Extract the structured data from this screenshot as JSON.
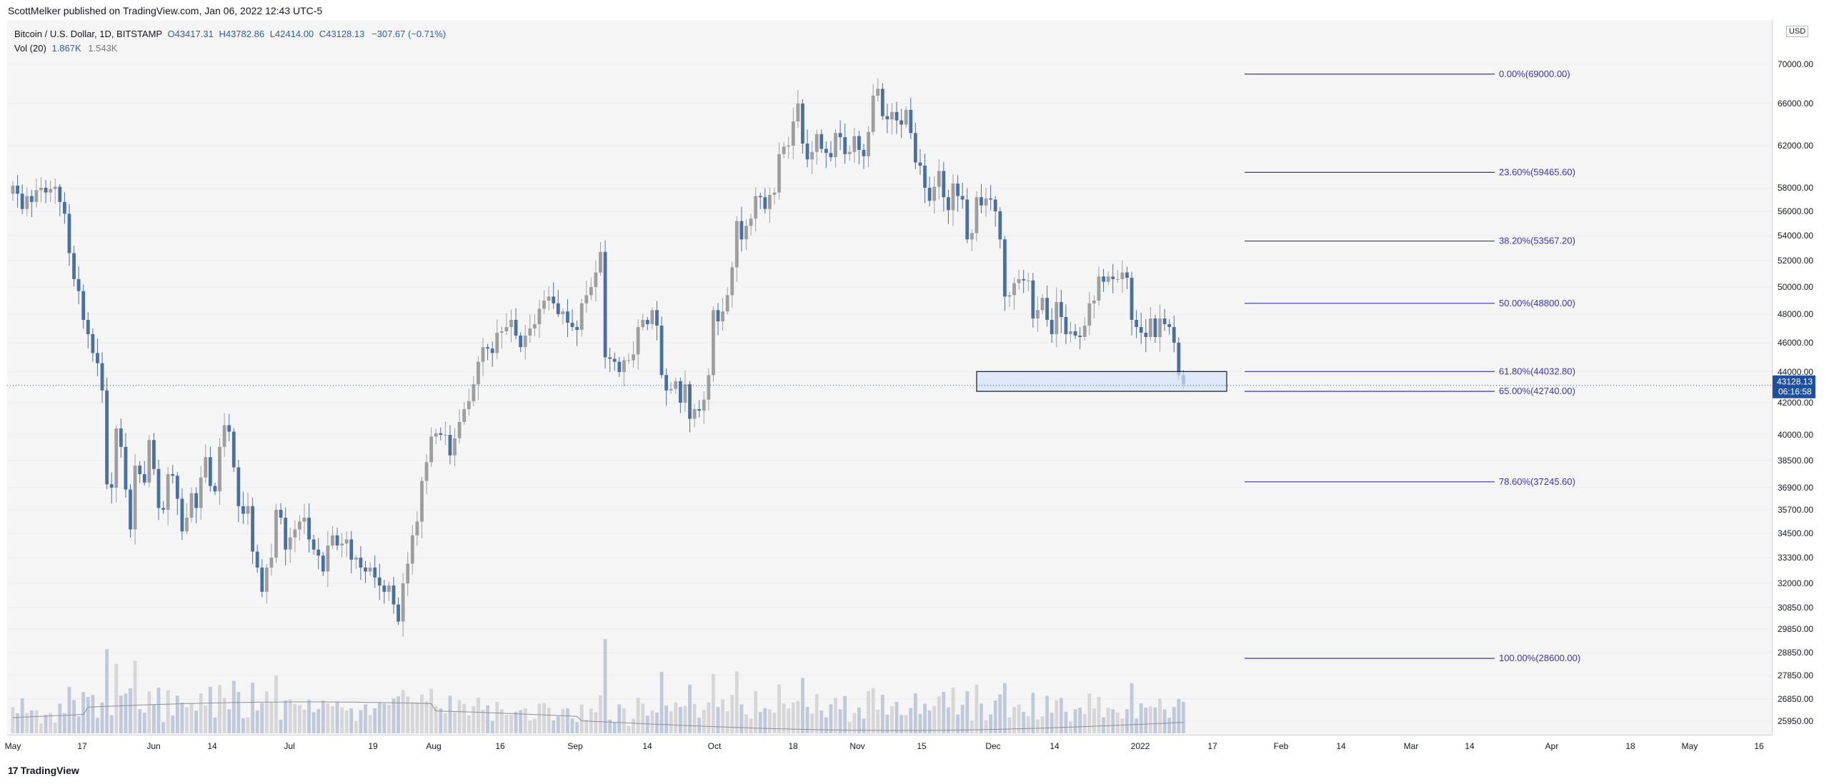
{
  "header": {
    "published": "ScottMelker published on TradingView.com, Jan 06, 2022 12:43 UTC-5"
  },
  "legend": {
    "symbol": "Bitcoin / U.S. Dollar, 1D, BITSTAMP",
    "open": "O43417.31",
    "high": "H43782.86",
    "low": "L42414.00",
    "close": "C43128.13",
    "change": "−307.67 (−0.71%)",
    "vol_label": "Vol (20)",
    "vol_value": "1.867K",
    "vol_ma": "1.543K"
  },
  "currency": "USD",
  "footer": {
    "brand": "TradingView",
    "logo_glyph": "17"
  },
  "colors": {
    "up": "#9e9e9e",
    "down": "#4a6fa5",
    "fib": "#3a34b5",
    "zone_fill": "#d6e2f7",
    "badge": "#1e4f9c"
  },
  "chart_data": {
    "type": "candlestick",
    "title": "Bitcoin / U.S. Dollar, 1D, BITSTAMP",
    "ylim": [
      25950,
      71000
    ],
    "y_ticks": [
      "70000.00",
      "66000.00",
      "62000.00",
      "58000.00",
      "56000.00",
      "54000.00",
      "52000.00",
      "50000.00",
      "48000.00",
      "46000.00",
      "44000.00",
      "42000.00",
      "40000.00",
      "38500.00",
      "36900.00",
      "35700.00",
      "34500.00",
      "33300.00",
      "32000.00",
      "30850.00",
      "29850.00",
      "28850.00",
      "27850.00",
      "26850.00",
      "25950.00"
    ],
    "x_ticks": [
      "May",
      "17",
      "Jun",
      "14",
      "Jul",
      "19",
      "Aug",
      "16",
      "Sep",
      "14",
      "Oct",
      "18",
      "Nov",
      "15",
      "Dec",
      "14",
      "2022",
      "17",
      "Feb",
      "14",
      "Mar",
      "14",
      "Apr",
      "18",
      "May",
      "16"
    ],
    "last_price": {
      "value": "43128.13",
      "countdown": "06:16:58"
    },
    "closes": [
      58200,
      57500,
      56200,
      57300,
      56800,
      57800,
      58000,
      57600,
      57900,
      58100,
      56800,
      55800,
      52600,
      50600,
      49700,
      47600,
      46600,
      45300,
      44600,
      42800,
      37100,
      36900,
      40400,
      39300,
      36800,
      34700,
      38200,
      37700,
      37200,
      39700,
      38000,
      35800,
      35700,
      37700,
      37600,
      36300,
      34600,
      35300,
      36600,
      35800,
      37500,
      38700,
      37000,
      36700,
      39300,
      40600,
      40200,
      38100,
      35900,
      35500,
      35900,
      33600,
      32800,
      31600,
      32800,
      33300,
      35700,
      35300,
      33700,
      34300,
      34700,
      35100,
      35300,
      34200,
      33700,
      33400,
      32600,
      33900,
      34400,
      33900,
      34000,
      34200,
      33200,
      33300,
      32800,
      32600,
      32800,
      32300,
      31900,
      31600,
      31900,
      31000,
      30200,
      32000,
      33000,
      34400,
      35100,
      37300,
      38400,
      39900,
      40100,
      40000,
      40000,
      38800,
      39800,
      40800,
      41600,
      42100,
      43200,
      44700,
      45700,
      45600,
      45300,
      46700,
      46800,
      47100,
      47600,
      46500,
      45700,
      46500,
      47000,
      47300,
      48400,
      49000,
      49300,
      48800,
      48000,
      48200,
      47400,
      47100,
      46900,
      48800,
      49400,
      50000,
      51100,
      52700,
      45000,
      44900,
      44700,
      44000,
      44800,
      44800,
      45200,
      47100,
      47600,
      47300,
      48300,
      47200,
      43800,
      42800,
      42900,
      43400,
      42000,
      43200,
      41000,
      41600,
      41500,
      42200,
      43800,
      48300,
      47500,
      48200,
      49400,
      51500,
      55200,
      53700,
      54800,
      55400,
      57300,
      57200,
      56200,
      57400,
      57600,
      61200,
      61900,
      62000,
      64300,
      66000,
      62200,
      60700,
      61400,
      63100,
      61700,
      61300,
      60900,
      63200,
      62800,
      61200,
      61400,
      62900,
      61600,
      61000,
      63300,
      66800,
      67500,
      64800,
      64500,
      65200,
      64400,
      64000,
      65400,
      63200,
      60400,
      60100,
      58000,
      56900,
      58100,
      59600,
      57200,
      56100,
      58400,
      57300,
      57000,
      53700,
      54200,
      57200,
      56500,
      57100,
      57000,
      56000,
      53700,
      49300,
      49400,
      50300,
      50600,
      50500,
      50500,
      47700,
      48300,
      49200,
      47600,
      46600,
      48900,
      47800,
      46600,
      46800,
      46500,
      46400,
      47200,
      48800,
      49000,
      50800,
      50400,
      50800,
      50600,
      50600,
      51100,
      50700,
      47600,
      47100,
      46700,
      46400,
      47700,
      46400,
      47700,
      47300,
      47100,
      46000,
      43800,
      43200
    ],
    "fib_levels": [
      {
        "pct": "0.00%",
        "price": 69000.0
      },
      {
        "pct": "23.60%",
        "price": 59465.6
      },
      {
        "pct": "38.20%",
        "price": 53567.2
      },
      {
        "pct": "50.00%",
        "price": 48800.0
      },
      {
        "pct": "61.80%",
        "price": 44032.8
      },
      {
        "pct": "65.00%",
        "price": 42740.0
      },
      {
        "pct": "78.60%",
        "price": 37245.6
      },
      {
        "pct": "100.00%",
        "price": 28600.0
      }
    ],
    "zone": [
      42740,
      44032.8
    ]
  }
}
